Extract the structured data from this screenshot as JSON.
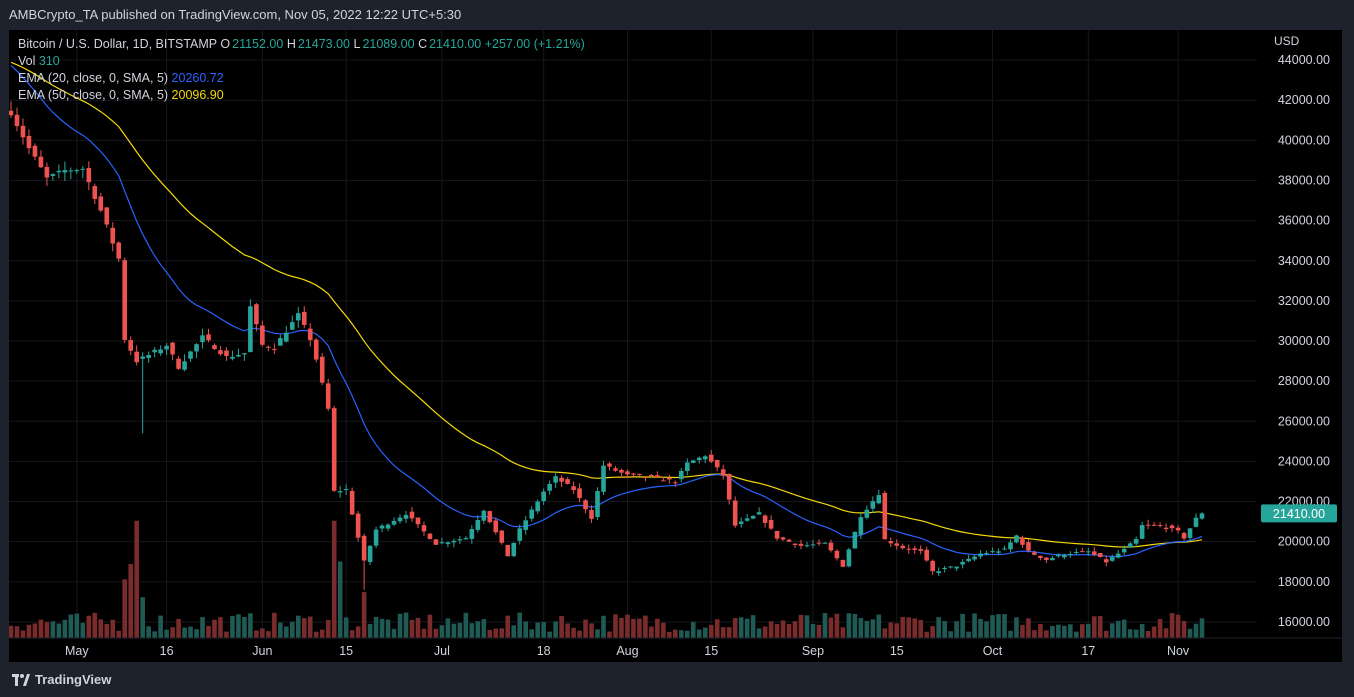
{
  "header": {
    "published_text": "AMBCrypto_TA published on TradingView.com, Nov 05, 2022 12:22 UTC+5:30"
  },
  "legend": {
    "symbol": "Bitcoin / U.S. Dollar, 1D, BITSTAMP",
    "o_label": "O",
    "o_value": "21152.00",
    "h_label": "H",
    "h_value": "21473.00",
    "l_label": "L",
    "l_value": "21089.00",
    "c_label": "C",
    "c_value": "21410.00",
    "change": "+257.00 (+1.21%)",
    "vol_label": "Vol",
    "vol_value": "310",
    "ema20_label": "EMA (20, close, 0, SMA, 5)",
    "ema20_value": "20260.72",
    "ema50_label": "EMA (50, close, 0, SMA, 5)",
    "ema50_value": "20096.90"
  },
  "footer": {
    "brand": "TradingView",
    "logo_icon": "tradingview-logo-icon"
  },
  "colors": {
    "up": "#26a69a",
    "down": "#ef5350",
    "vol_up": "#1f5a54",
    "vol_down": "#7a2b2b",
    "ema20": "#2962ff",
    "ema50": "#f5d90a",
    "price_tag_bg": "#26a69a",
    "background": "#000000",
    "chrome": "#1e222d"
  },
  "chart_data": {
    "type": "candlestick",
    "currency_label": "USD",
    "last_price_label": "21410.00",
    "y_ticks": [
      "44000.00",
      "42000.00",
      "40000.00",
      "38000.00",
      "36000.00",
      "34000.00",
      "32000.00",
      "30000.00",
      "28000.00",
      "26000.00",
      "24000.00",
      "22000.00",
      "20000.00",
      "18000.00",
      "16000.00"
    ],
    "ylim": [
      15200,
      45500
    ],
    "x_ticks": [
      {
        "label": "May",
        "date": "2022-05-01"
      },
      {
        "label": "16",
        "date": "2022-05-16"
      },
      {
        "label": "Jun",
        "date": "2022-06-01"
      },
      {
        "label": "15",
        "date": "2022-06-15"
      },
      {
        "label": "Jul",
        "date": "2022-07-01"
      },
      {
        "label": "18",
        "date": "2022-07-18"
      },
      {
        "label": "Aug",
        "date": "2022-08-01"
      },
      {
        "label": "15",
        "date": "2022-08-15"
      },
      {
        "label": "Sep",
        "date": "2022-09-01"
      },
      {
        "label": "15",
        "date": "2022-09-15"
      },
      {
        "label": "Oct",
        "date": "2022-10-01"
      },
      {
        "label": "17",
        "date": "2022-10-17"
      },
      {
        "label": "Nov",
        "date": "2022-11-01"
      }
    ],
    "xlim": [
      "2022-04-20",
      "2022-11-05"
    ],
    "close_path": [
      [
        "2022-04-20",
        41400
      ],
      [
        "2022-04-23",
        39600
      ],
      [
        "2022-04-26",
        38100
      ],
      [
        "2022-04-29",
        38500
      ],
      [
        "2022-05-02",
        38600
      ],
      [
        "2022-05-05",
        36500
      ],
      [
        "2022-05-08",
        34100
      ],
      [
        "2022-05-09",
        30100
      ],
      [
        "2022-05-11",
        29000
      ],
      [
        "2022-05-13",
        29300
      ],
      [
        "2022-05-16",
        29800
      ],
      [
        "2022-05-18",
        28700
      ],
      [
        "2022-05-22",
        30200
      ],
      [
        "2022-05-26",
        29200
      ],
      [
        "2022-05-29",
        29400
      ],
      [
        "2022-05-30",
        31700
      ],
      [
        "2022-06-01",
        29800
      ],
      [
        "2022-06-03",
        29700
      ],
      [
        "2022-06-07",
        31300
      ],
      [
        "2022-06-09",
        30100
      ],
      [
        "2022-06-10",
        29100
      ],
      [
        "2022-06-12",
        26600
      ],
      [
        "2022-06-13",
        22500
      ],
      [
        "2022-06-15",
        22600
      ],
      [
        "2022-06-18",
        19000
      ],
      [
        "2022-06-20",
        20600
      ],
      [
        "2022-06-25",
        21400
      ],
      [
        "2022-06-30",
        19900
      ],
      [
        "2022-07-05",
        20200
      ],
      [
        "2022-07-08",
        21600
      ],
      [
        "2022-07-12",
        19300
      ],
      [
        "2022-07-14",
        20600
      ],
      [
        "2022-07-18",
        22500
      ],
      [
        "2022-07-20",
        23200
      ],
      [
        "2022-07-23",
        22600
      ],
      [
        "2022-07-26",
        21200
      ],
      [
        "2022-07-28",
        23800
      ],
      [
        "2022-08-01",
        23300
      ],
      [
        "2022-08-05",
        23200
      ],
      [
        "2022-08-09",
        23000
      ],
      [
        "2022-08-11",
        23900
      ],
      [
        "2022-08-14",
        24300
      ],
      [
        "2022-08-17",
        23300
      ],
      [
        "2022-08-19",
        20800
      ],
      [
        "2022-08-23",
        21400
      ],
      [
        "2022-08-26",
        20200
      ],
      [
        "2022-08-30",
        19800
      ],
      [
        "2022-09-03",
        19900
      ],
      [
        "2022-09-06",
        18800
      ],
      [
        "2022-09-09",
        21300
      ],
      [
        "2022-09-12",
        22400
      ],
      [
        "2022-09-13",
        20100
      ],
      [
        "2022-09-16",
        19700
      ],
      [
        "2022-09-19",
        19500
      ],
      [
        "2022-09-21",
        18500
      ],
      [
        "2022-09-25",
        18800
      ],
      [
        "2022-09-29",
        19400
      ],
      [
        "2022-10-03",
        19600
      ],
      [
        "2022-10-05",
        20300
      ],
      [
        "2022-10-07",
        19500
      ],
      [
        "2022-10-10",
        19100
      ],
      [
        "2022-10-13",
        19400
      ],
      [
        "2022-10-17",
        19500
      ],
      [
        "2022-10-20",
        19000
      ],
      [
        "2022-10-23",
        19600
      ],
      [
        "2022-10-25",
        20100
      ],
      [
        "2022-10-26",
        20800
      ],
      [
        "2022-10-29",
        20800
      ],
      [
        "2022-11-01",
        20500
      ],
      [
        "2022-11-02",
        20200
      ],
      [
        "2022-11-04",
        21150
      ],
      [
        "2022-11-05",
        21410
      ]
    ],
    "series": [
      {
        "indicator": "EMA 20",
        "final_value": 20260.72,
        "color": "#2962ff"
      },
      {
        "indicator": "EMA 50",
        "final_value": 20096.9,
        "color": "#f5d90a"
      }
    ],
    "volume_lim": [
      0,
      3000
    ],
    "volume_tall_bars": [
      {
        "date": "2022-05-09",
        "value": 1150
      },
      {
        "date": "2022-05-10",
        "value": 1450
      },
      {
        "date": "2022-05-11",
        "value": 2300
      },
      {
        "date": "2022-05-12",
        "value": 800
      },
      {
        "date": "2022-06-13",
        "value": 2300
      },
      {
        "date": "2022-06-14",
        "value": 1500
      },
      {
        "date": "2022-06-18",
        "value": 900
      }
    ],
    "grid": true,
    "legend_position": "top-left"
  }
}
